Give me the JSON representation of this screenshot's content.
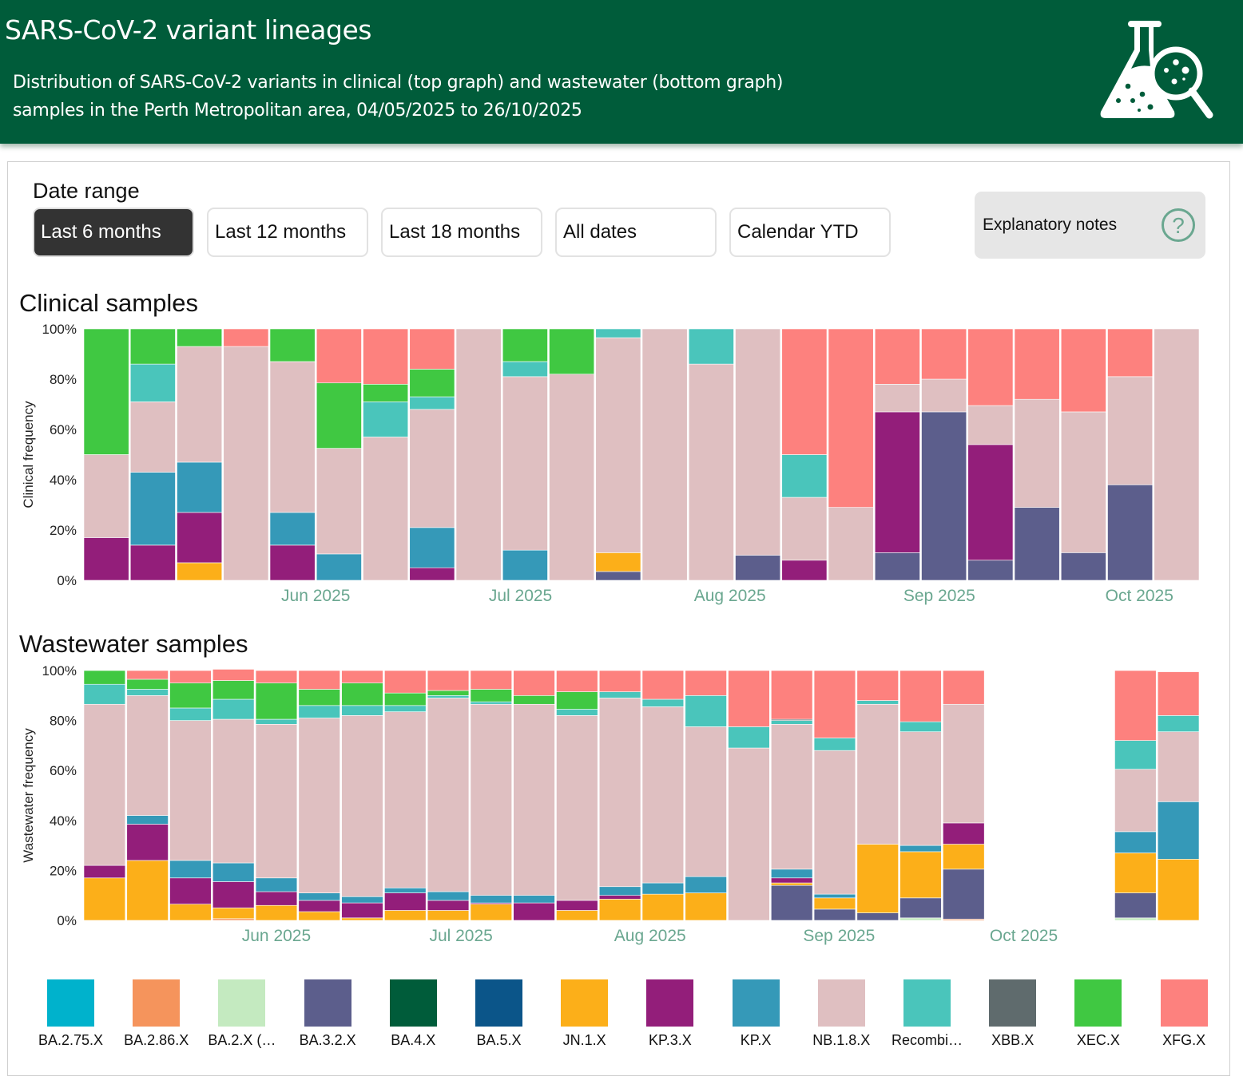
{
  "header": {
    "title": "SARS-CoV-2 variant lineages",
    "subtitle_line1": "Distribution of SARS-CoV-2 variants in clinical (top graph) and wastewater (bottom graph)",
    "subtitle_line2": "samples in the Perth Metropolitan area, 04/05/2025 to 26/10/2025",
    "icon": "flask-magnifier-icon"
  },
  "date_range": {
    "label": "Date range",
    "options": [
      "Last 6 months",
      "Last 12 months",
      "Last 18 months",
      "All dates",
      "Calendar YTD"
    ],
    "selected": "Last 6 months"
  },
  "explanatory_notes": {
    "label": "Explanatory notes",
    "icon": "?"
  },
  "sections": {
    "clinical_title": "Clinical samples",
    "wastewater_title": "Wastewater samples"
  },
  "variants": [
    {
      "name": "BA.2.75.X",
      "color": "#00b2cc"
    },
    {
      "name": "BA.2.86.X",
      "color": "#f5945c"
    },
    {
      "name": "BA.2.X (…",
      "color": "#c4eac0"
    },
    {
      "name": "BA.3.2.X",
      "color": "#5c5e8c"
    },
    {
      "name": "BA.4.X",
      "color": "#005c3a"
    },
    {
      "name": "BA.5.X",
      "color": "#0b5589"
    },
    {
      "name": "JN.1.X",
      "color": "#fcaf19"
    },
    {
      "name": "KP.3.X",
      "color": "#931e7a"
    },
    {
      "name": "KP.X",
      "color": "#3599b8"
    },
    {
      "name": "NB.1.8.X",
      "color": "#dfbfc1"
    },
    {
      "name": "Recombi…",
      "color": "#4ac5bb"
    },
    {
      "name": "XBB.X",
      "color": "#5f6b6d"
    },
    {
      "name": "XEC.X",
      "color": "#40c842"
    },
    {
      "name": "XFG.X",
      "color": "#fd817e"
    }
  ],
  "chart_data": [
    {
      "type": "bar",
      "stacked": "percent",
      "title": "Clinical samples",
      "ylabel": "Clinical frequency",
      "xlabel": "",
      "ylim": [
        0,
        100
      ],
      "yticks": [
        "0%",
        "20%",
        "40%",
        "60%",
        "80%",
        "100%"
      ],
      "xticks": [
        {
          "label": "Jun 2025",
          "pos": 5
        },
        {
          "label": "Jul 2025",
          "pos": 9.4
        },
        {
          "label": "Aug 2025",
          "pos": 13.9
        },
        {
          "label": "Sep 2025",
          "pos": 18.4
        },
        {
          "label": "Oct 2025",
          "pos": 22.7
        }
      ],
      "grid": false,
      "bars": [
        {
          "KP.3.X": 17,
          "NB.1.8.X": 33,
          "XEC.X": 50
        },
        {
          "KP.3.X": 14,
          "KP.X": 29,
          "NB.1.8.X": 28,
          "Recombinant": 15,
          "XEC.X": 14
        },
        {
          "JN.1.X": 7,
          "KP.3.X": 20,
          "KP.X": 20,
          "NB.1.8.X": 46,
          "XEC.X": 7
        },
        {
          "NB.1.8.X": 93,
          "XFG.X": 7
        },
        {
          "KP.3.X": 14,
          "KP.X": 13,
          "NB.1.8.X": 60,
          "XEC.X": 13
        },
        {
          "KP.X": 10.5,
          "NB.1.8.X": 42,
          "XEC.X": 26,
          "XFG.X": 21.5
        },
        {
          "NB.1.8.X": 57,
          "Recombinant": 14,
          "XEC.X": 7,
          "XFG.X": 22
        },
        {
          "KP.3.X": 5,
          "KP.X": 16,
          "NB.1.8.X": 47,
          "Recombinant": 5,
          "XEC.X": 11,
          "XFG.X": 16
        },
        {
          "NB.1.8.X": 100
        },
        {
          "KP.X": 12,
          "NB.1.8.X": 69,
          "Recombinant": 6,
          "XEC.X": 13
        },
        {
          "NB.1.8.X": 82,
          "XEC.X": 18
        },
        {
          "BA.3.2.X": 3.5,
          "JN.1.X": 7.5,
          "NB.1.8.X": 85.5,
          "Recombinant": 3.5
        },
        {
          "NB.1.8.X": 100
        },
        {
          "NB.1.8.X": 86,
          "Recombinant": 14
        },
        {
          "BA.3.2.X": 10,
          "NB.1.8.X": 90
        },
        {
          "KP.3.X": 8,
          "NB.1.8.X": 25,
          "Recombinant": 17,
          "XFG.X": 50
        },
        {
          "NB.1.8.X": 29,
          "XFG.X": 71
        },
        {
          "BA.3.2.X": 11,
          "KP.3.X": 56,
          "NB.1.8.X": 11,
          "XFG.X": 22
        },
        {
          "BA.3.2.X": 67,
          "NB.1.8.X": 13,
          "XFG.X": 20
        },
        {
          "BA.3.2.X": 8,
          "KP.3.X": 46,
          "NB.1.8.X": 15.5,
          "XFG.X": 30.5
        },
        {
          "BA.3.2.X": 29,
          "NB.1.8.X": 43,
          "XFG.X": 28
        },
        {
          "BA.3.2.X": 11,
          "NB.1.8.X": 56,
          "XFG.X": 33
        },
        {
          "BA.3.2.X": 38,
          "NB.1.8.X": 43,
          "XFG.X": 19
        },
        {
          "NB.1.8.X": 100
        }
      ]
    },
    {
      "type": "bar",
      "stacked": "percent",
      "title": "Wastewater samples",
      "ylabel": "Wastewater frequency",
      "xlabel": "",
      "ylim": [
        0,
        100
      ],
      "yticks": [
        "0%",
        "20%",
        "40%",
        "60%",
        "80%",
        "100%"
      ],
      "xticks": [
        {
          "label": "Jun 2025",
          "pos": 4.5
        },
        {
          "label": "Jul 2025",
          "pos": 8.8
        },
        {
          "label": "Aug 2025",
          "pos": 13.2
        },
        {
          "label": "Sep 2025",
          "pos": 17.6
        },
        {
          "label": "Oct 2025",
          "pos": 21.9
        }
      ],
      "grid": false,
      "bars": [
        {
          "JN.1.X": 17,
          "KP.3.X": 5,
          "NB.1.8.X": 64.5,
          "Recombinant": 8,
          "XEC.X": 5.5
        },
        {
          "JN.1.X": 24,
          "KP.3.X": 14.5,
          "KP.X": 3.5,
          "NB.1.8.X": 48,
          "Recombinant": 2.5,
          "XEC.X": 4,
          "XFG.X": 3.5
        },
        {
          "JN.1.X": 6.5,
          "KP.3.X": 10.5,
          "KP.X": 7,
          "NB.1.8.X": 56,
          "Recombinant": 5,
          "XEC.X": 10,
          "XFG.X": 5
        },
        {
          "BA.2.86.X": 0.7,
          "JN.1.X": 4.3,
          "KP.3.X": 10.5,
          "KP.X": 7.5,
          "NB.1.8.X": 57.5,
          "Recombinant": 8,
          "XEC.X": 7.5,
          "XFG.X": 4.5
        },
        {
          "JN.1.X": 6,
          "KP.3.X": 5.5,
          "KP.X": 5.5,
          "NB.1.8.X": 61.5,
          "Recombinant": 2,
          "XEC.X": 14.5,
          "XFG.X": 5
        },
        {
          "JN.1.X": 3.5,
          "KP.3.X": 4.5,
          "KP.X": 3,
          "NB.1.8.X": 70,
          "Recombinant": 5,
          "XEC.X": 6.5,
          "XFG.X": 7.5
        },
        {
          "JN.1.X": 1,
          "KP.3.X": 6,
          "KP.X": 2.5,
          "NB.1.8.X": 72.5,
          "Recombinant": 4,
          "XEC.X": 9,
          "XFG.X": 5
        },
        {
          "JN.1.X": 4,
          "KP.3.X": 7,
          "KP.X": 2,
          "NB.1.8.X": 70.5,
          "Recombinant": 2.5,
          "XEC.X": 5,
          "XFG.X": 9
        },
        {
          "JN.1.X": 4,
          "KP.3.X": 4,
          "KP.X": 3.5,
          "NB.1.8.X": 77.5,
          "Recombinant": 1,
          "XEC.X": 2,
          "XFG.X": 8
        },
        {
          "JN.1.X": 6.5,
          "KP.3.X": 0.5,
          "KP.X": 3,
          "NB.1.8.X": 76.5,
          "Recombinant": 1,
          "XEC.X": 5,
          "XFG.X": 7.5
        },
        {
          "KP.3.X": 7,
          "KP.X": 3,
          "NB.1.8.X": 76.5,
          "XEC.X": 3.5,
          "XFG.X": 10
        },
        {
          "JN.1.X": 4,
          "KP.3.X": 4,
          "NB.1.8.X": 74,
          "Recombinant": 2.5,
          "XEC.X": 7,
          "XFG.X": 8.5
        },
        {
          "JN.1.X": 8.5,
          "KP.3.X": 1.5,
          "KP.X": 3.5,
          "NB.1.8.X": 75.5,
          "Recombinant": 2.5,
          "XFG.X": 8.5
        },
        {
          "JN.1.X": 10.5,
          "KP.X": 4.5,
          "NB.1.8.X": 70.5,
          "Recombinant": 3,
          "XFG.X": 11.5
        },
        {
          "JN.1.X": 11,
          "KP.X": 6.5,
          "NB.1.8.X": 60,
          "Recombinant": 12.5,
          "XFG.X": 10
        },
        {
          "NB.1.8.X": 69,
          "Recombinant": 8.5,
          "XFG.X": 22.5
        },
        {
          "BA.3.2.X": 14,
          "JN.1.X": 1,
          "KP.3.X": 2,
          "KP.X": 3.5,
          "NB.1.8.X": 58,
          "Recombinant": 1.5,
          "XBB.X": 0.5,
          "XFG.X": 19.5
        },
        {
          "BA.3.2.X": 4.5,
          "JN.1.X": 4.5,
          "KP.X": 1.5,
          "NB.1.8.X": 57.5,
          "Recombinant": 5,
          "XFG.X": 27
        },
        {
          "BA.3.2.X": 3,
          "JN.1.X": 27.5,
          "NB.1.8.X": 56,
          "Recombinant": 1.5,
          "XFG.X": 12
        },
        {
          "BA.2.X": 1,
          "BA.3.2.X": 8,
          "JN.1.X": 18.5,
          "KP.X": 2.5,
          "NB.1.8.X": 45.5,
          "Recombinant": 4,
          "XFG.X": 20.5
        },
        {
          "BA.2.86.X": 0.5,
          "BA.3.2.X": 20,
          "JN.1.X": 10,
          "KP.3.X": 8.5,
          "NB.1.8.X": 47.5,
          "XFG.X": 13.5
        },
        {},
        {},
        {},
        {
          "BA.2.X": 1,
          "BA.3.2.X": 10,
          "JN.1.X": 16,
          "KP.X": 8.5,
          "NB.1.8.X": 25,
          "Recombinant": 11.5,
          "XFG.X": 28
        },
        {
          "JN.1.X": 24.5,
          "KP.X": 23,
          "NB.1.8.X": 28,
          "Recombinant": 6.5,
          "XFG.X": 17.5
        }
      ]
    }
  ]
}
